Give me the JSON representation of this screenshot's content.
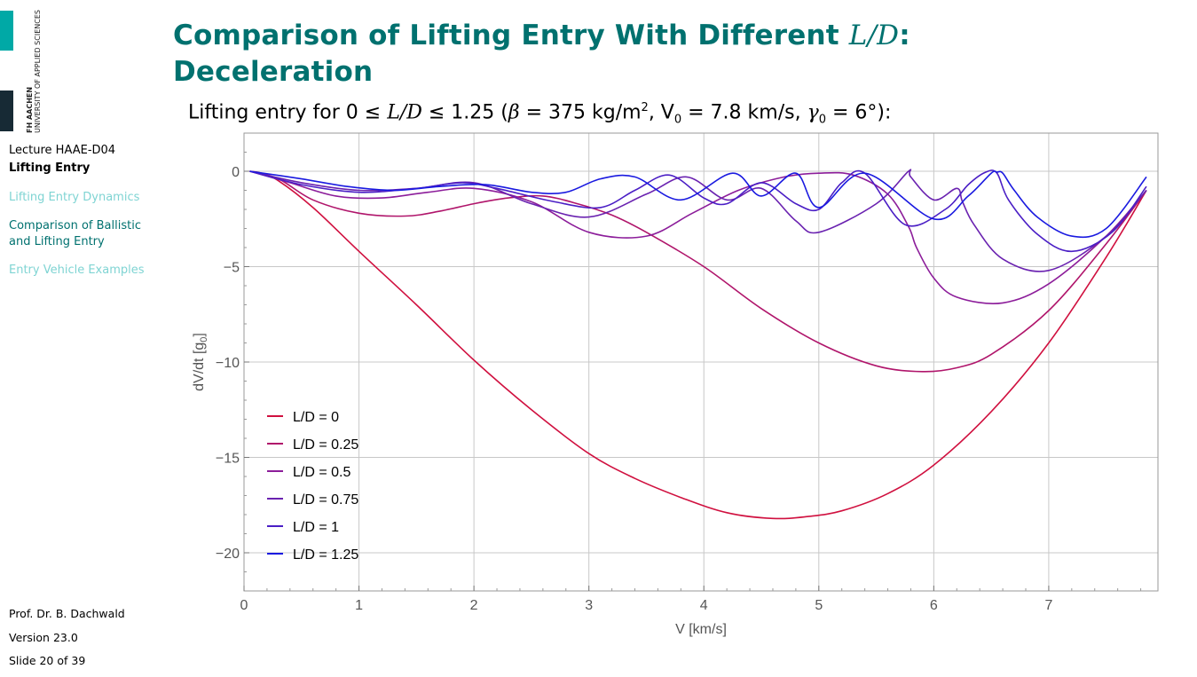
{
  "sidebar": {
    "logo_line1": "FH AACHEN",
    "logo_line2": "UNIVERSITY OF APPLIED SCIENCES",
    "course": "Lecture HAAE-D04",
    "topic": "Lifting Entry",
    "nav": [
      {
        "label": "Lifting Entry Dynamics",
        "state": "inactive"
      },
      {
        "label": "Comparison of Ballistic and Lifting Entry",
        "state": "active"
      },
      {
        "label": "Entry Vehicle Examples",
        "state": "inactive"
      }
    ],
    "author": "Prof. Dr. B. Dachwald",
    "version": "Version 23.0",
    "slide": "Slide 20 of 39"
  },
  "slide": {
    "title_part1": "Comparison of Lifting Entry With Different ",
    "title_math": "L/D",
    "title_part2": ":",
    "title_line2": "Deceleration",
    "subtitle_prefix": "Lifting entry for 0 ≤ ",
    "subtitle_ld": "L/D",
    "subtitle_mid": " ≤ 1.25 (",
    "subtitle_beta": "β",
    "subtitle_beta_val": " = 375 kg/m",
    "subtitle_sq": "2",
    "subtitle_v0": ", V",
    "subtitle_v0_sub": "0",
    "subtitle_v0_val": " = 7.8 km/s, ",
    "subtitle_gamma": "γ",
    "subtitle_gamma_sub": "0",
    "subtitle_gamma_val": " = 6°):"
  },
  "colors": {
    "accent": "#00716f",
    "accent_light": "#7fd4d3",
    "logo_teal": "#00a9a6",
    "logo_dark": "#172a35",
    "grid": "#c8c8c8"
  },
  "chart_data": {
    "type": "line",
    "xlabel": "V [km/s]",
    "ylabel": "dV/dt [g0]",
    "ylabel_main": "dV/dt [g",
    "ylabel_sub": "0",
    "ylabel_end": "]",
    "xlim": [
      0,
      7.95
    ],
    "ylim": [
      -22,
      2
    ],
    "xticks": [
      0,
      1,
      2,
      3,
      4,
      5,
      6,
      7
    ],
    "yticks": [
      0,
      -5,
      -10,
      -15,
      -20
    ],
    "ytick_labels": [
      "0",
      "−5",
      "−10",
      "−15",
      "−20"
    ],
    "grid": true,
    "legend_position": "lower-left",
    "series": [
      {
        "name": "L/D = 0",
        "color": "#d0103f",
        "x": [
          7.85,
          7.5,
          7.0,
          6.5,
          6.0,
          5.6,
          5.2,
          4.9,
          4.6,
          4.2,
          3.8,
          3.4,
          3.0,
          2.5,
          2.0,
          1.5,
          1.0,
          0.6,
          0.3,
          0.15,
          0.05
        ],
        "y": [
          -1.0,
          -4.5,
          -9.0,
          -12.6,
          -15.4,
          -16.9,
          -17.8,
          -18.1,
          -18.2,
          -17.9,
          -17.1,
          -16.1,
          -14.8,
          -12.5,
          -9.9,
          -7.0,
          -4.2,
          -1.9,
          -0.5,
          -0.1,
          0.0
        ]
      },
      {
        "name": "L/D = 0.25",
        "color": "#b0156b",
        "x": [
          7.85,
          7.5,
          7.0,
          6.5,
          6.2,
          5.9,
          5.5,
          5.0,
          4.5,
          4.0,
          3.5,
          3.2,
          2.9,
          2.6,
          2.3,
          2.0,
          1.7,
          1.4,
          1.0,
          0.6,
          0.3,
          0.05
        ],
        "y": [
          -1.0,
          -3.8,
          -7.3,
          -9.6,
          -10.3,
          -10.5,
          -10.2,
          -9.0,
          -7.2,
          -5.0,
          -3.2,
          -2.3,
          -1.7,
          -1.3,
          -1.4,
          -1.7,
          -2.1,
          -2.35,
          -2.2,
          -1.5,
          -0.4,
          0.0
        ]
      },
      {
        "name": "L/D = 0.5",
        "color": "#8c1d9a",
        "x": [
          7.85,
          7.5,
          7.0,
          6.6,
          6.2,
          6.0,
          5.85,
          5.78,
          5.6,
          5.3,
          5.0,
          4.7,
          4.3,
          3.9,
          3.5,
          3.0,
          2.5,
          2.0,
          1.6,
          1.2,
          0.8,
          0.4,
          0.05
        ],
        "y": [
          -1.0,
          -3.4,
          -5.9,
          -6.9,
          -6.6,
          -5.6,
          -4.0,
          -2.9,
          -1.2,
          -0.2,
          -0.1,
          -0.3,
          -1.0,
          -2.2,
          -3.4,
          -3.2,
          -1.6,
          -0.9,
          -1.1,
          -1.4,
          -1.3,
          -0.6,
          0.0
        ]
      },
      {
        "name": "L/D = 0.75",
        "color": "#6a22b0",
        "x": [
          7.85,
          7.5,
          7.0,
          6.6,
          6.35,
          6.25,
          6.2,
          6.0,
          5.8,
          5.78,
          5.5,
          5.0,
          4.8,
          4.5,
          4.2,
          3.85,
          3.5,
          3.0,
          2.5,
          2.0,
          1.5,
          1.0,
          0.5,
          0.05
        ],
        "y": [
          -1.0,
          -3.4,
          -5.2,
          -4.6,
          -2.8,
          -1.6,
          -0.9,
          -1.5,
          -0.3,
          0.0,
          -1.7,
          -3.2,
          -2.6,
          -0.9,
          -1.5,
          -0.3,
          -1.2,
          -2.4,
          -1.7,
          -0.6,
          -0.9,
          -1.0,
          -0.6,
          0.0
        ]
      },
      {
        "name": "L/D = 1",
        "color": "#4a1ec5",
        "x": [
          7.85,
          7.55,
          7.2,
          6.9,
          6.65,
          6.55,
          6.45,
          6.3,
          6.1,
          5.75,
          5.4,
          5.2,
          5.0,
          4.8,
          4.5,
          4.2,
          4.0,
          3.7,
          3.4,
          3.1,
          2.7,
          2.2,
          1.9,
          1.5,
          1.0,
          0.5,
          0.05
        ],
        "y": [
          -0.8,
          -3.2,
          -4.2,
          -3.3,
          -1.5,
          -0.1,
          -0.05,
          -0.7,
          -2.0,
          -2.8,
          -0.1,
          -0.6,
          -2.0,
          -1.7,
          -0.6,
          -1.7,
          -1.4,
          -0.2,
          -1.0,
          -1.9,
          -1.6,
          -0.9,
          -0.6,
          -0.9,
          -1.1,
          -0.7,
          0.0
        ]
      },
      {
        "name": "L/D = 1.25",
        "color": "#1a1ae0",
        "x": [
          7.85,
          7.5,
          7.2,
          6.9,
          6.7,
          6.6,
          6.55,
          6.5,
          6.3,
          6.0,
          5.4,
          5.0,
          4.8,
          4.5,
          4.25,
          3.8,
          3.4,
          3.1,
          2.8,
          2.5,
          2.1,
          1.7,
          1.3,
          0.9,
          0.5,
          0.05
        ],
        "y": [
          -0.3,
          -3.0,
          -3.4,
          -2.4,
          -1.0,
          -0.1,
          -0.05,
          -0.1,
          -1.3,
          -2.5,
          -0.1,
          -1.9,
          -0.1,
          -1.3,
          -0.1,
          -1.5,
          -0.3,
          -0.4,
          -1.1,
          -1.1,
          -0.7,
          -0.8,
          -1.0,
          -0.8,
          -0.4,
          0.0
        ]
      }
    ]
  }
}
